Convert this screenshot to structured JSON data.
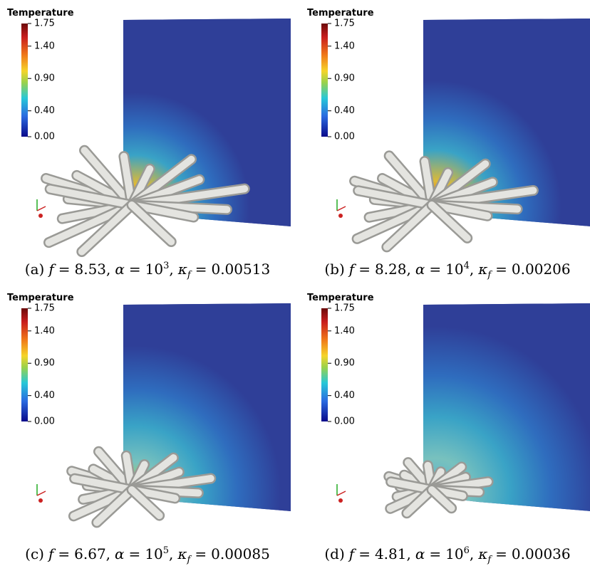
{
  "colorbar": {
    "title": "Temperature",
    "range": [
      0,
      1.75
    ],
    "ticks": [
      {
        "value": 1.75,
        "label": "1.75"
      },
      {
        "value": 1.4,
        "label": "1.40"
      },
      {
        "value": 0.9,
        "label": "0.90"
      },
      {
        "value": 0.4,
        "label": "0.40"
      },
      {
        "value": 0,
        "label": "0.00"
      }
    ]
  },
  "symbols": {
    "f": "f",
    "alpha": "α",
    "kappa": "κ",
    "equals": "=",
    "base": "10",
    "comma": ","
  },
  "panels": [
    {
      "tag": "(a)",
      "f_value": "8.53",
      "alpha_exponent": "3",
      "kappa_value": "0.00513"
    },
    {
      "tag": "(b)",
      "f_value": "8.28",
      "alpha_exponent": "4",
      "kappa_value": "0.00206"
    },
    {
      "tag": "(c)",
      "f_value": "6.67",
      "alpha_exponent": "5",
      "kappa_value": "0.00085"
    },
    {
      "tag": "(d)",
      "f_value": "4.81",
      "alpha_exponent": "6",
      "kappa_value": "0.00036"
    }
  ]
}
